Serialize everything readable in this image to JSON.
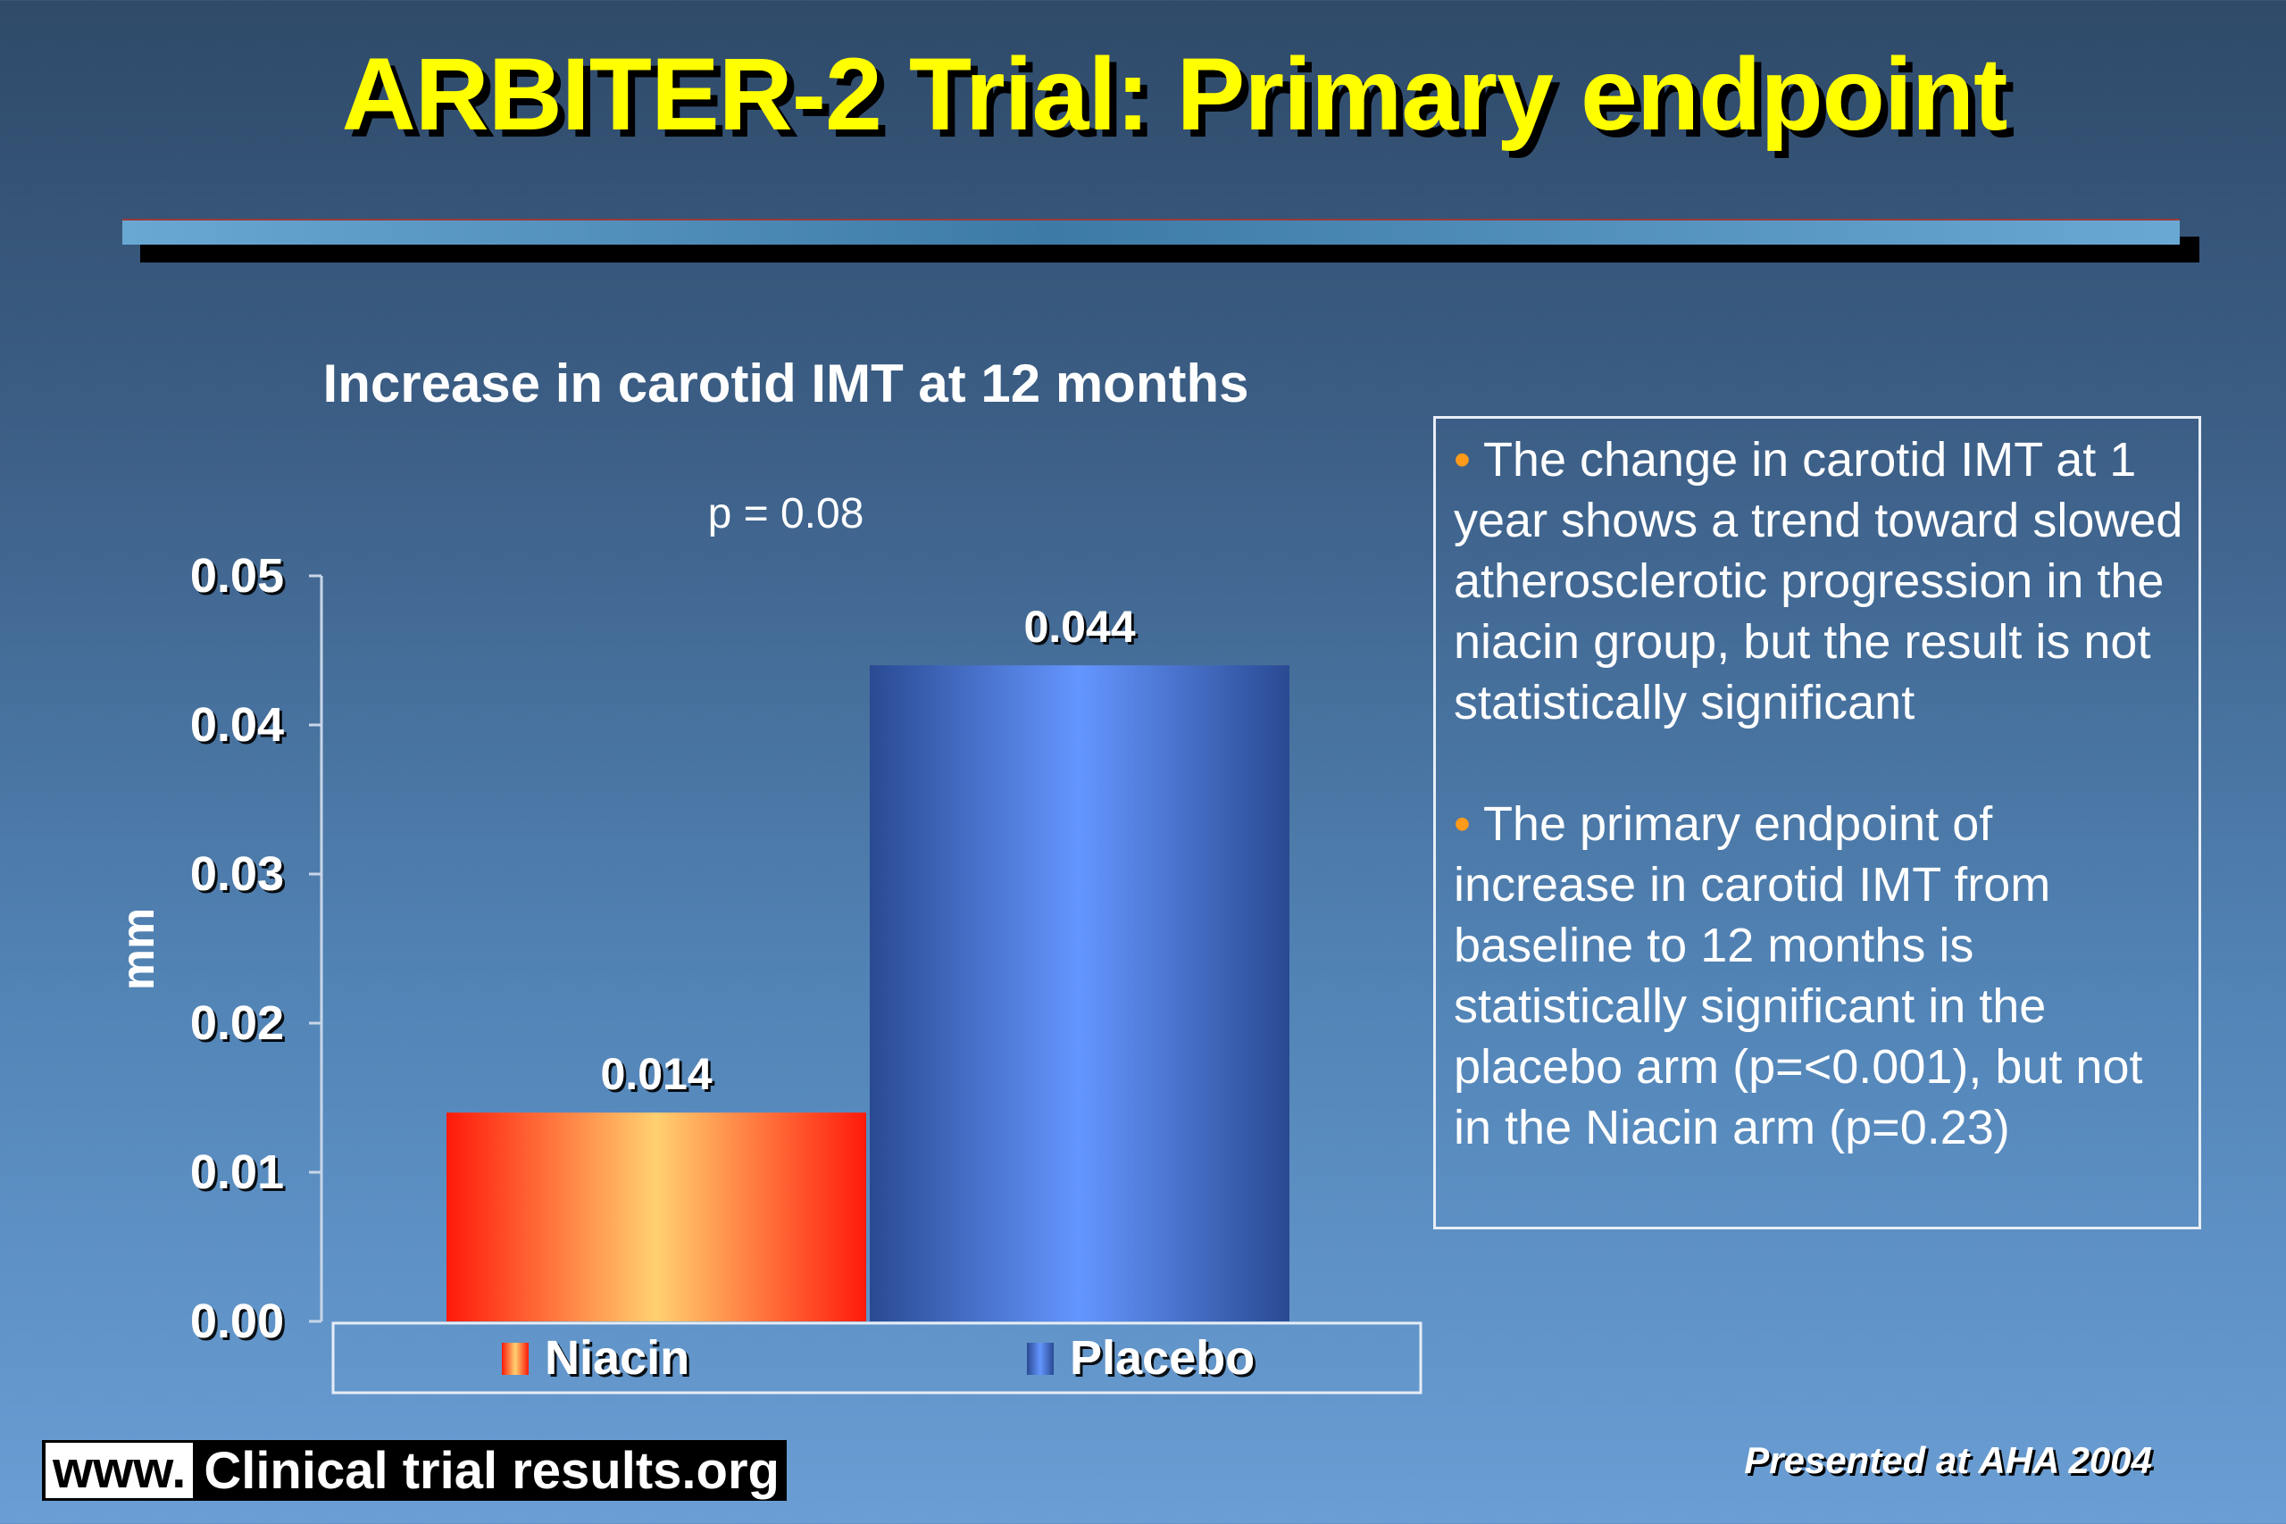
{
  "slide": {
    "title": "ARBITER-2 Trial: Primary endpoint",
    "footer_www": "www.",
    "footer_site": "Clinical trial results.org",
    "footer_right": "Presented at AHA 2004",
    "notes": {
      "bullet_symbol": "•",
      "bullets": [
        "The change in carotid IMT at 1 year shows a trend toward slowed atherosclerotic progression in the niacin group, but the result is not statistically significant",
        "The primary endpoint of increase in carotid IMT from baseline to 12 months is statistically significant in the placebo arm (p=<0.001), but not in the Niacin arm (p=0.23)"
      ]
    }
  },
  "chart_data": {
    "type": "bar",
    "title": "Increase in carotid IMT at 12 months",
    "annotation": "p = 0.08",
    "ylabel": "mm",
    "xlabel": "",
    "ylim": [
      0,
      0.05
    ],
    "yticks": [
      "0.00",
      "0.01",
      "0.02",
      "0.03",
      "0.04",
      "0.05"
    ],
    "categories": [
      "Niacin",
      "Placebo"
    ],
    "values": [
      0.014,
      0.044
    ],
    "data_labels": [
      "0.014",
      "0.044"
    ],
    "colors": [
      "#ff2a10",
      "#4a78d8"
    ],
    "legend": [
      "Niacin",
      "Placebo"
    ],
    "legend_position": "bottom",
    "grid": false
  }
}
